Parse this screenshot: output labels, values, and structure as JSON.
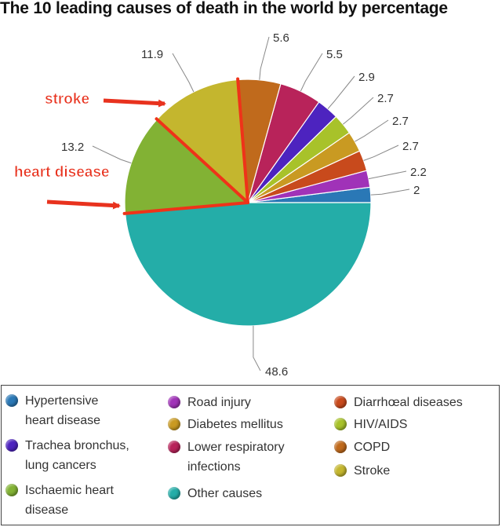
{
  "chart_data": {
    "type": "pie",
    "title": "The 10 leading causes of death in the world by percentage",
    "slices": [
      {
        "label": "Hypertensive heart disease",
        "value": 2,
        "value_label": "2",
        "color": "#2a78b6"
      },
      {
        "label": "Road injury",
        "value": 2.2,
        "value_label": "2.2",
        "color": "#a032b8"
      },
      {
        "label": "Diarrhœal diseases",
        "value": 2.7,
        "value_label": "2.7",
        "color": "#c84a1c"
      },
      {
        "label": "Diabetes mellitus",
        "value": 2.7,
        "value_label": "2.7",
        "color": "#c99a22"
      },
      {
        "label": "HIV/AIDS",
        "value": 2.7,
        "value_label": "2.7",
        "color": "#a8c22a"
      },
      {
        "label": "Trachea bronchus, lung cancers",
        "value": 2.9,
        "value_label": "2.9",
        "color": "#4d23bf"
      },
      {
        "label": "Lower respiratory infections",
        "value": 5.5,
        "value_label": "5.5",
        "color": "#b8235a"
      },
      {
        "label": "COPD",
        "value": 5.6,
        "value_label": "5.6",
        "color": "#c06a1c"
      },
      {
        "label": "Stroke",
        "value": 11.9,
        "value_label": "11.9",
        "color": "#c4b62e"
      },
      {
        "label": "Ischaemic heart disease",
        "value": 13.2,
        "value_label": "13.2",
        "color": "#82b234"
      },
      {
        "label": "Other causes",
        "value": 48.6,
        "value_label": "48.6",
        "color": "#24ada8"
      }
    ],
    "start_direction": "3 o'clock, counterclockwise",
    "annotations": [
      {
        "text": "stroke",
        "points_to": "Stroke",
        "color": "#e8321e"
      },
      {
        "text": "heart disease",
        "points_to": "Ischaemic heart disease",
        "color": "#e8321e"
      }
    ],
    "legend": {
      "placement": "bottom",
      "columns": [
        [
          "Hypertensive heart disease",
          "Trachea bronchus, lung cancers",
          "Ischaemic heart disease"
        ],
        [
          "Road injury",
          "Diabetes mellitus",
          "Lower respiratory infections",
          "Other causes"
        ],
        [
          "Diarrhœal diseases",
          "HIV/AIDS",
          "COPD",
          "Stroke"
        ]
      ]
    }
  }
}
